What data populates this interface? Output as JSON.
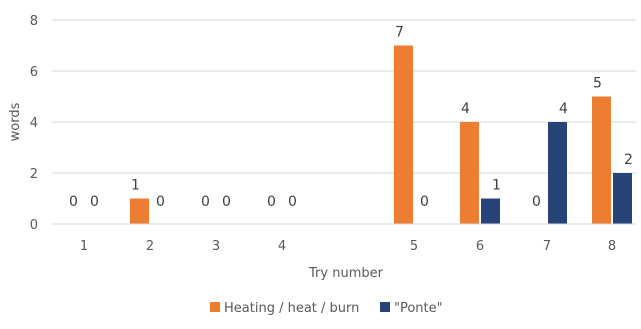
{
  "chart_data": {
    "type": "bar",
    "categories": [
      "1",
      "2",
      "3",
      "4",
      "",
      "5",
      "6",
      "7",
      "8"
    ],
    "series": [
      {
        "name": "Heating / heat / burn",
        "color": "#ED7D31",
        "values": [
          0,
          1,
          0,
          0,
          null,
          7,
          4,
          0,
          5
        ]
      },
      {
        "name": "\"Ponte\"",
        "color": "#264478",
        "values": [
          0,
          0,
          0,
          0,
          null,
          0,
          1,
          4,
          2
        ]
      }
    ],
    "xlabel": "Try number",
    "ylabel": "words",
    "ylim": [
      0,
      8
    ],
    "yticks": [
      0,
      2,
      4,
      6,
      8
    ],
    "grid": true,
    "legend_position": "bottom"
  }
}
